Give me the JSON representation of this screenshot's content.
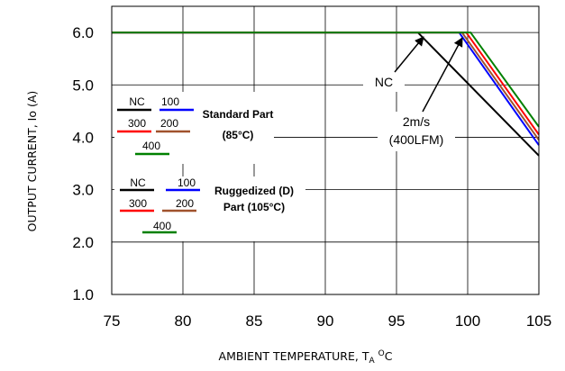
{
  "chart_data": {
    "type": "line",
    "xlabel": {
      "prefix": "AMBIENT TEMPERATURE, T",
      "sub": "A",
      "sup": "O",
      "suffix": "C"
    },
    "ylabel": "OUTPUT CURRENT, Io (A)",
    "xlim": [
      75,
      105
    ],
    "ylim": [
      1.0,
      6.5
    ],
    "xticks": [
      75,
      80,
      85,
      90,
      95,
      100,
      105
    ],
    "yticks": [
      "1.0",
      "2.0",
      "3.0",
      "4.0",
      "5.0",
      "6.0"
    ],
    "grid": true,
    "series": [
      {
        "name": "NC",
        "color": "#000000",
        "x": [
          75,
          96.5,
          105
        ],
        "y": [
          6.0,
          6.0,
          3.65
        ]
      },
      {
        "name": "100",
        "color": "#0000ff",
        "x": [
          75,
          99.4,
          105
        ],
        "y": [
          6.0,
          6.0,
          3.85
        ]
      },
      {
        "name": "200",
        "color": "#a0522d",
        "x": [
          75,
          99.6,
          105
        ],
        "y": [
          6.0,
          6.0,
          3.95
        ]
      },
      {
        "name": "300",
        "color": "#ff0000",
        "x": [
          75,
          99.9,
          105
        ],
        "y": [
          6.0,
          6.0,
          4.05
        ]
      },
      {
        "name": "400",
        "color": "#008000",
        "x": [
          75,
          100.2,
          105
        ],
        "y": [
          6.0,
          6.0,
          4.2
        ]
      }
    ],
    "legend_groups": [
      {
        "title_lines": [
          "Standard Part",
          "(85°C)"
        ],
        "entries": [
          {
            "label": "NC",
            "color": "#000000"
          },
          {
            "label": "100",
            "color": "#0000ff"
          },
          {
            "label": "300",
            "color": "#ff0000"
          },
          {
            "label": "200",
            "color": "#a0522d"
          },
          {
            "label": "400",
            "color": "#008000"
          }
        ]
      },
      {
        "title_lines": [
          "Ruggedized (D)",
          "Part (105°C)"
        ],
        "entries": [
          {
            "label": "NC",
            "color": "#000000"
          },
          {
            "label": "100",
            "color": "#0000ff"
          },
          {
            "label": "300",
            "color": "#ff0000"
          },
          {
            "label": "200",
            "color": "#a0522d"
          },
          {
            "label": "400",
            "color": "#008000"
          }
        ]
      }
    ],
    "annotations": [
      {
        "text": "NC"
      },
      {
        "text": "2m/s"
      },
      {
        "text": "(400LFM)"
      }
    ]
  }
}
